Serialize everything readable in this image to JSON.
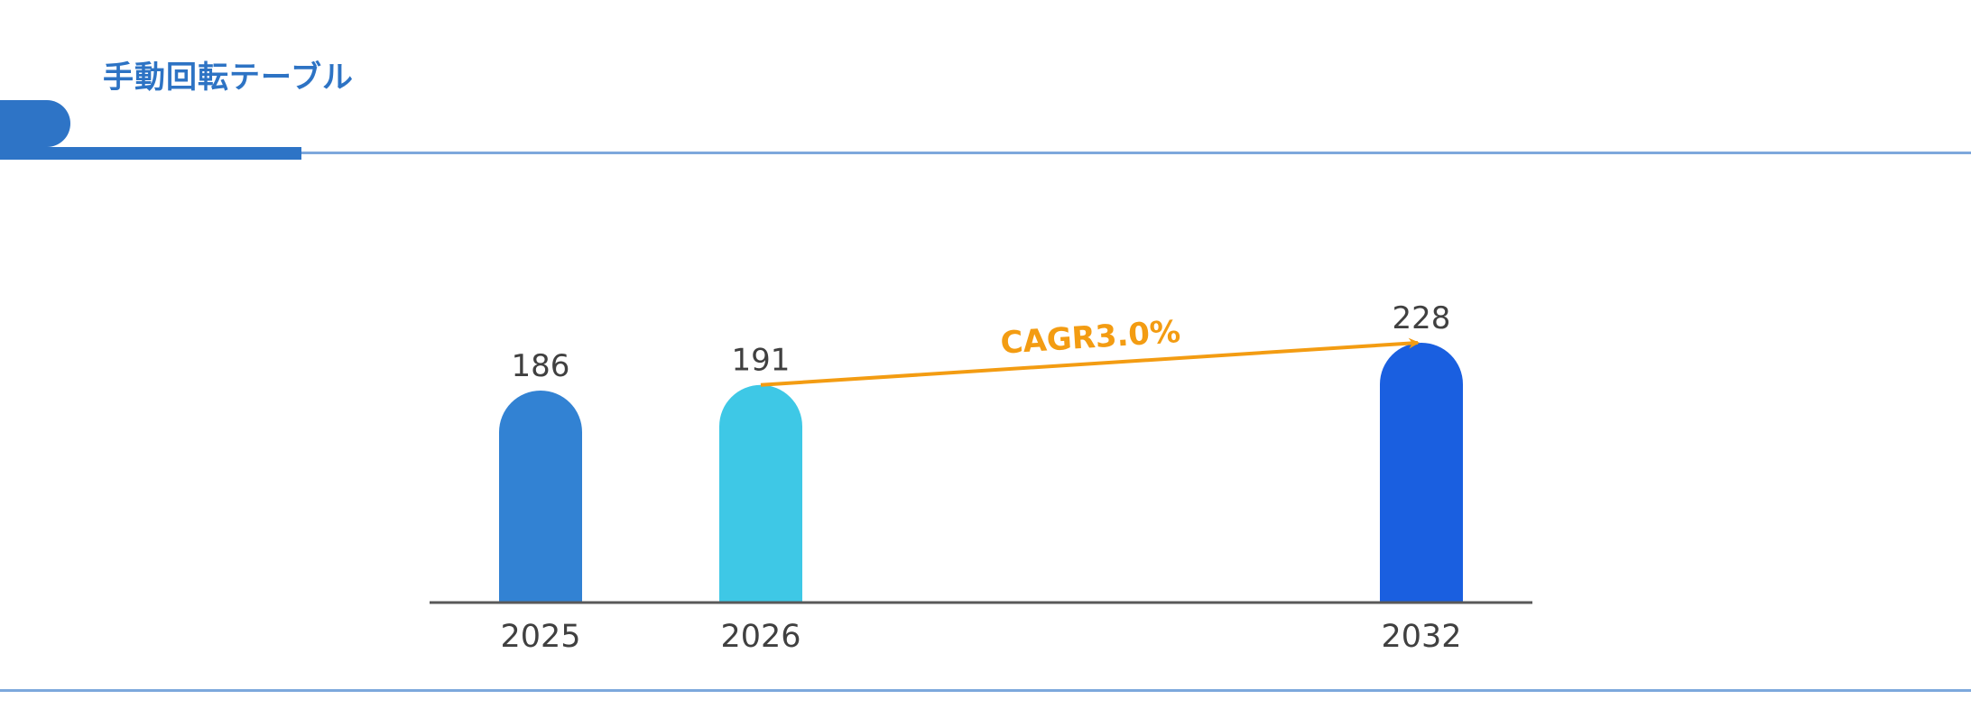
{
  "header": {
    "title": "手動回転テーブル"
  },
  "colors": {
    "accent": "#2e74c6",
    "header_line": "#7da8dc",
    "arrow": "#f39c12",
    "axis": "#595959"
  },
  "chart_data": {
    "type": "bar",
    "categories": [
      "2025",
      "2026",
      "2032"
    ],
    "values": [
      186,
      191,
      228
    ],
    "bar_colors": [
      "#3282d3",
      "#3ec8e6",
      "#1a5fe0"
    ],
    "ylim": [
      0,
      228
    ],
    "grid": false,
    "legend": "none",
    "annotations": [
      {
        "type": "arrow",
        "from": "2026",
        "to": "2032",
        "text": "CAGR3.0%"
      }
    ]
  }
}
